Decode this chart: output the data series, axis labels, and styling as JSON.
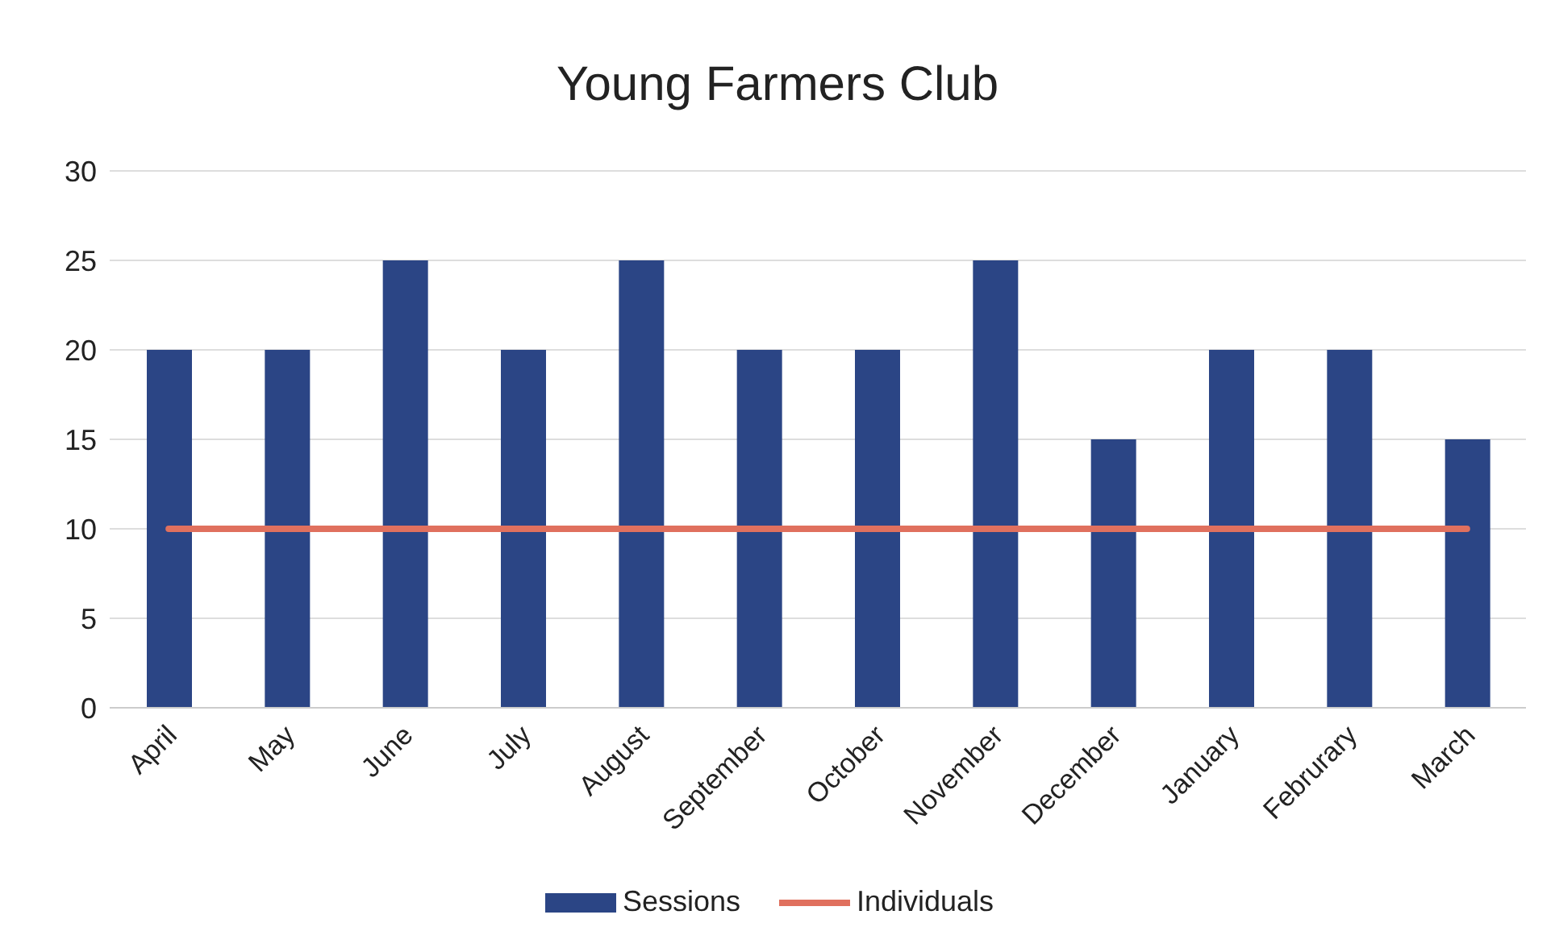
{
  "chart_data": {
    "type": "bar",
    "title": "Young Farmers Club",
    "categories": [
      "April",
      "May",
      "June",
      "July",
      "August",
      "September",
      "October",
      "November",
      "December",
      "January",
      "Februrary",
      "March"
    ],
    "series": [
      {
        "name": "Sessions",
        "color": "#2b4585",
        "values": [
          20,
          20,
          25,
          20,
          25,
          20,
          20,
          25,
          15,
          20,
          20,
          15
        ]
      },
      {
        "name": "Individuals",
        "type": "line",
        "color": "#e0705e",
        "values": [
          10,
          10,
          10,
          10,
          10,
          10,
          10,
          10,
          10,
          10,
          10,
          10
        ]
      }
    ],
    "ylim": [
      0,
      30
    ],
    "yticks": [
      0,
      5,
      10,
      15,
      20,
      25,
      30
    ],
    "grid": "y",
    "legend": "bottom",
    "marker": "none",
    "line_style": "solid"
  }
}
